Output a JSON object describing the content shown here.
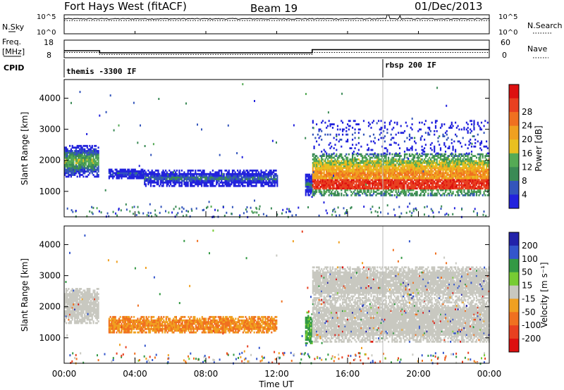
{
  "header": {
    "title": "Fort Hays West (fitACF)",
    "beam": "Beam 19",
    "date": "01/Dec/2013"
  },
  "strips": {
    "nsky_label": "N.Sky",
    "nsearch_label": "N.Search",
    "nsky_ticks": [
      "10^5",
      "10^0"
    ],
    "nsearch_ticks": [
      "10^5",
      "10^0"
    ],
    "freq_label": "Freq.",
    "freq_unit": "[MHz]",
    "freq_ticks": [
      "18",
      "8"
    ],
    "nave_label": "Nave",
    "nave_ticks": [
      "60",
      "0"
    ],
    "cpid_label": "CPID",
    "cpid_events": [
      {
        "time": 0.0,
        "label": "themis -3300 IF"
      },
      {
        "time": 18.0,
        "label": "rbsp 200 IF"
      }
    ]
  },
  "xaxis": {
    "label": "Time UT",
    "ticks": [
      "00:00",
      "04:00",
      "08:00",
      "12:00",
      "16:00",
      "20:00",
      "00:00"
    ],
    "range_hours": [
      0,
      24
    ]
  },
  "panels": {
    "ylabel": "Slant Range [km]",
    "yticks": [
      "1000",
      "2000",
      "3000",
      "4000"
    ]
  },
  "colorbars": {
    "power": {
      "label": "Power [dB]",
      "ticks": [
        "4",
        "8",
        "12",
        "16",
        "20",
        "24",
        "28"
      ],
      "colors": [
        "#2222dd",
        "#3355bb",
        "#3a8a55",
        "#55aa55",
        "#e8c020",
        "#f0a020",
        "#f07020",
        "#e84020",
        "#dd1010"
      ]
    },
    "velocity": {
      "label": "Velocity [m s⁻¹]",
      "ticks": [
        "200",
        "100",
        "50",
        "15",
        "-15",
        "-50",
        "-100",
        "-200"
      ],
      "colors": [
        "#2222aa",
        "#3355cc",
        "#339944",
        "#77cc33",
        "#c8c8c0",
        "#f0a020",
        "#f07020",
        "#e84020",
        "#dd1010"
      ]
    }
  },
  "chart_data": [
    {
      "type": "line",
      "title": "N.Sky / N.Search",
      "xlabel": "",
      "ylabel": "N.Sky",
      "yscale": "log",
      "ylim": [
        1,
        100000
      ],
      "series": [
        {
          "name": "N.Sky",
          "x": [
            0,
            4,
            8,
            12,
            16,
            18.2,
            18.8,
            20,
            24
          ],
          "values": [
            9000,
            9000,
            9000,
            9000,
            9000,
            100000,
            9000,
            9000,
            9000
          ]
        },
        {
          "name": "N.Search",
          "x": [
            0,
            24
          ],
          "values": [
            3000,
            3000
          ]
        }
      ]
    },
    {
      "type": "line",
      "title": "Freq. / Nave",
      "ylabel": "Freq. [MHz]",
      "ylim": [
        8,
        18
      ],
      "series": [
        {
          "name": "Freq.",
          "x": [
            0,
            2.0,
            2.0,
            14.0,
            14.0,
            24
          ],
          "values": [
            12,
            12,
            10.8,
            10.8,
            12.6,
            12.6
          ]
        },
        {
          "name": "Nave",
          "x": [
            0,
            2.0,
            2.0,
            14.0,
            14.0,
            24
          ],
          "values": [
            18,
            18,
            11,
            11,
            18,
            18
          ]
        }
      ]
    },
    {
      "type": "heatmap",
      "title": "Power",
      "xlabel": "Time UT",
      "ylabel": "Slant Range [km]",
      "xlim": [
        0,
        24
      ],
      "ylim": [
        180,
        4600
      ],
      "colorbar": "Power [dB]",
      "regions": [
        {
          "t0": 0.0,
          "t1": 1.9,
          "r0": 1450,
          "r1": 2450,
          "value": 14
        },
        {
          "t0": 2.5,
          "t1": 4.5,
          "r0": 1400,
          "r1": 1700,
          "value": 6
        },
        {
          "t0": 4.5,
          "t1": 12.0,
          "r0": 1150,
          "r1": 1650,
          "value": 8
        },
        {
          "t0": 13.6,
          "t1": 14.0,
          "r0": 800,
          "r1": 1600,
          "value": 8
        },
        {
          "t0": 14.0,
          "t1": 24.0,
          "r0": 850,
          "r1": 2200,
          "value": 22
        },
        {
          "t0": 14.0,
          "t1": 24.0,
          "r0": 2200,
          "r1": 3300,
          "value": 6
        }
      ]
    },
    {
      "type": "heatmap",
      "title": "Velocity",
      "xlabel": "Time UT",
      "ylabel": "Slant Range [km]",
      "xlim": [
        0,
        24
      ],
      "ylim": [
        180,
        4600
      ],
      "colorbar": "Velocity [m s⁻¹]",
      "regions": [
        {
          "t0": 0.0,
          "t1": 1.9,
          "r0": 1450,
          "r1": 2600,
          "value": 0
        },
        {
          "t0": 2.5,
          "t1": 12.0,
          "r0": 1150,
          "r1": 1650,
          "value": -50
        },
        {
          "t0": 13.6,
          "t1": 14.0,
          "r0": 800,
          "r1": 1800,
          "value": 40
        },
        {
          "t0": 14.0,
          "t1": 24.0,
          "r0": 850,
          "r1": 2200,
          "value": 0
        },
        {
          "t0": 14.0,
          "t1": 24.0,
          "r0": 2200,
          "r1": 3300,
          "value": 0
        }
      ]
    }
  ]
}
